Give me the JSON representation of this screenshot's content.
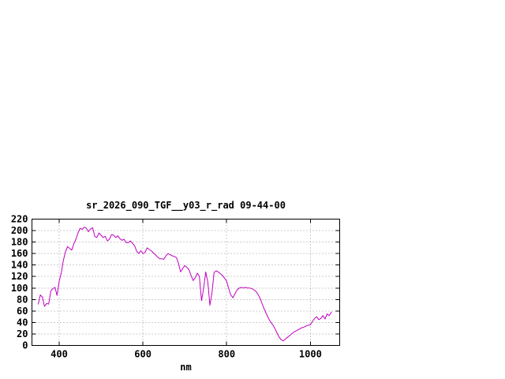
{
  "page": {
    "background": "#ffffff"
  },
  "chart_data": {
    "type": "line",
    "title": "sr_2026_090_TGF__y03_r_rad 09-44-00",
    "xlabel": "nm",
    "ylabel": "",
    "xlim": [
      335,
      1070
    ],
    "ylim": [
      0,
      220
    ],
    "x_ticks": [
      400,
      600,
      800,
      1000
    ],
    "y_ticks": [
      0,
      20,
      40,
      60,
      80,
      100,
      120,
      140,
      160,
      180,
      200,
      220
    ],
    "grid": true,
    "legend": "none",
    "line_color": "#c000c0",
    "series": [
      {
        "name": "sr_2026_090_TGF__y03_r_rad",
        "x": [
          350,
          355,
          360,
          365,
          370,
          375,
          380,
          385,
          390,
          395,
          400,
          405,
          410,
          415,
          420,
          425,
          430,
          435,
          440,
          445,
          450,
          455,
          460,
          465,
          470,
          475,
          480,
          485,
          490,
          495,
          500,
          505,
          510,
          515,
          520,
          525,
          530,
          535,
          540,
          545,
          550,
          555,
          560,
          565,
          570,
          575,
          580,
          585,
          590,
          595,
          600,
          605,
          610,
          615,
          620,
          625,
          630,
          635,
          640,
          645,
          650,
          655,
          660,
          665,
          670,
          675,
          680,
          685,
          690,
          695,
          700,
          705,
          710,
          715,
          720,
          725,
          730,
          735,
          740,
          745,
          750,
          755,
          760,
          765,
          770,
          775,
          780,
          785,
          790,
          795,
          800,
          805,
          810,
          815,
          820,
          825,
          830,
          835,
          840,
          845,
          850,
          855,
          860,
          865,
          870,
          875,
          880,
          885,
          890,
          895,
          900,
          905,
          910,
          915,
          920,
          925,
          930,
          935,
          940,
          945,
          950,
          955,
          960,
          965,
          970,
          975,
          980,
          985,
          990,
          995,
          1000,
          1005,
          1010,
          1015,
          1020,
          1025,
          1030,
          1035,
          1040,
          1045,
          1050
        ],
        "y": [
          72,
          88,
          84,
          68,
          73,
          72,
          95,
          99,
          101,
          87,
          112,
          126,
          148,
          163,
          172,
          169,
          166,
          177,
          185,
          196,
          204,
          202,
          206,
          204,
          198,
          203,
          205,
          190,
          188,
          196,
          192,
          188,
          190,
          182,
          185,
          193,
          192,
          188,
          191,
          186,
          183,
          185,
          179,
          179,
          182,
          178,
          174,
          164,
          160,
          165,
          160,
          162,
          170,
          167,
          165,
          161,
          158,
          154,
          151,
          151,
          150,
          156,
          160,
          158,
          156,
          155,
          153,
          143,
          128,
          134,
          139,
          136,
          132,
          122,
          113,
          118,
          126,
          120,
          78,
          100,
          128,
          110,
          70,
          92,
          127,
          130,
          128,
          125,
          122,
          117,
          112,
          99,
          88,
          83,
          90,
          97,
          100,
          101,
          100,
          101,
          100,
          100,
          99,
          97,
          94,
          89,
          82,
          72,
          63,
          55,
          47,
          41,
          36,
          30,
          22,
          15,
          10,
          8,
          11,
          14,
          17,
          20,
          23,
          25,
          27,
          29,
          31,
          32,
          34,
          35,
          36,
          42,
          47,
          50,
          45,
          47,
          52,
          46,
          55,
          52,
          58
        ]
      }
    ]
  }
}
